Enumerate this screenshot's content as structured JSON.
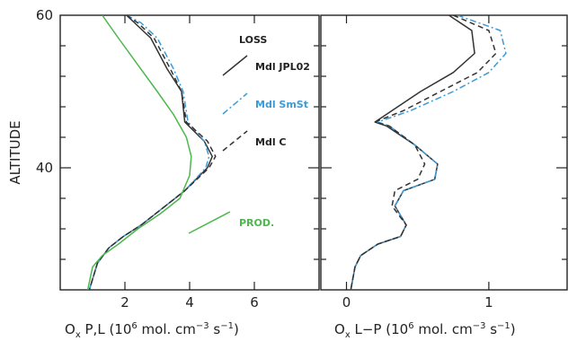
{
  "chart_data": [
    {
      "type": "line",
      "ylabel": "ALTITUDE",
      "xlabel_main": "O",
      "xlabel_sub": "x",
      "xlabel_rest": " P,L (10",
      "xlabel_exp1": "6",
      "xlabel_mid": " mol. cm",
      "xlabel_exp2": "−3",
      "xlabel_mid2": " s",
      "xlabel_exp3": "−1",
      "xlabel_end": ")",
      "xlim": [
        0.0,
        8.0
      ],
      "ylim": [
        24,
        60
      ],
      "xticks": [
        2,
        4,
        6
      ],
      "xtick_labels": [
        "2",
        "4",
        "6"
      ],
      "yticks": [
        40,
        60
      ],
      "ytick_labels": [
        "40",
        "60"
      ],
      "legend_title": "LOSS",
      "series": [
        {
          "name": "Mdl JPL02",
          "color": "#333333",
          "dash": "solid",
          "x": [
            2.05,
            2.3,
            2.8,
            3.3,
            3.75,
            3.85,
            4.45,
            4.7,
            4.55,
            3.85,
            3.1,
            2.5,
            1.95,
            1.5,
            1.15,
            0.9
          ],
          "y": [
            60,
            59,
            57,
            53,
            50,
            46,
            43.5,
            41.5,
            40,
            37,
            34.5,
            32.5,
            31,
            29.5,
            27.5,
            24
          ]
        },
        {
          "name": "Mdl SmSt",
          "color": "#3c9ad6",
          "dash": "dashdot",
          "x": [
            2.05,
            2.5,
            3.0,
            3.5,
            3.8,
            3.95,
            4.45,
            4.6,
            4.5,
            3.85,
            3.1,
            2.5,
            1.95,
            1.5,
            1.15,
            0.9
          ],
          "y": [
            60,
            59,
            57,
            53,
            50,
            46,
            43.5,
            41.5,
            40,
            37,
            34.5,
            32.5,
            31,
            29.5,
            27.5,
            24
          ]
        },
        {
          "name": "Mdl C",
          "color": "#333333",
          "dash": "dashed",
          "x": [
            2.05,
            2.4,
            2.9,
            3.4,
            3.75,
            3.9,
            4.55,
            4.8,
            4.6,
            3.85,
            3.1,
            2.5,
            1.95,
            1.5,
            1.15,
            0.9
          ],
          "y": [
            60,
            59,
            57,
            53,
            50,
            46,
            43.5,
            41.5,
            40,
            37,
            34.5,
            32.5,
            31,
            29.5,
            27.5,
            24
          ]
        },
        {
          "name": "PROD.",
          "color": "#4cb84c",
          "dash": "solid",
          "x": [
            1.3,
            1.8,
            2.4,
            3.0,
            3.5,
            3.9,
            4.05,
            4.0,
            3.7,
            3.1,
            2.4,
            1.8,
            1.3,
            1.0,
            0.85
          ],
          "y": [
            60,
            57,
            53.5,
            50,
            47,
            44,
            41.5,
            39,
            36,
            34,
            32,
            30,
            28.5,
            27,
            24
          ]
        }
      ]
    },
    {
      "type": "line",
      "xlabel_main": "O",
      "xlabel_sub": "x",
      "xlabel_rest": " L−P (10",
      "xlabel_exp1": "6",
      "xlabel_mid": " mol. cm",
      "xlabel_exp2": "−3",
      "xlabel_mid2": " s",
      "xlabel_exp3": "−1",
      "xlabel_end": ")",
      "xlim": [
        -0.18,
        1.55
      ],
      "ylim": [
        24,
        60
      ],
      "xticks": [
        0,
        1
      ],
      "xtick_labels": [
        "0",
        "1"
      ],
      "series": [
        {
          "name": "Mdl JPL02",
          "color": "#333333",
          "dash": "solid",
          "x": [
            0.72,
            0.88,
            0.9,
            0.75,
            0.52,
            0.32,
            0.2,
            0.28,
            0.48,
            0.64,
            0.62,
            0.4,
            0.34,
            0.42,
            0.38,
            0.22,
            0.1,
            0.06,
            0.03
          ],
          "y": [
            60,
            58,
            55,
            52.5,
            50,
            47.5,
            46,
            45.5,
            43,
            40.5,
            38.5,
            37,
            35,
            32.5,
            31,
            30,
            28.5,
            27,
            24
          ]
        },
        {
          "name": "Mdl SmSt",
          "color": "#3c9ad6",
          "dash": "dashdot",
          "x": [
            0.78,
            1.08,
            1.12,
            1.0,
            0.75,
            0.45,
            0.22,
            0.3,
            0.48,
            0.64,
            0.62,
            0.4,
            0.34,
            0.42,
            0.38,
            0.22,
            0.1,
            0.06,
            0.03
          ],
          "y": [
            60,
            58,
            55,
            52.5,
            50,
            47.5,
            46,
            45.5,
            43,
            40.5,
            38.5,
            37,
            35,
            32.5,
            31,
            30,
            28.5,
            27,
            24
          ]
        },
        {
          "name": "Mdl C",
          "color": "#333333",
          "dash": "dashed",
          "x": [
            0.75,
            1.0,
            1.05,
            0.92,
            0.66,
            0.4,
            0.2,
            0.3,
            0.48,
            0.55,
            0.5,
            0.34,
            0.32,
            0.42,
            0.38,
            0.22,
            0.1,
            0.06,
            0.03
          ],
          "y": [
            60,
            58,
            55,
            52.5,
            50,
            47.5,
            46,
            45.5,
            43,
            40.5,
            38.5,
            37,
            35,
            32.5,
            31,
            30,
            28.5,
            27,
            24
          ]
        }
      ]
    }
  ]
}
